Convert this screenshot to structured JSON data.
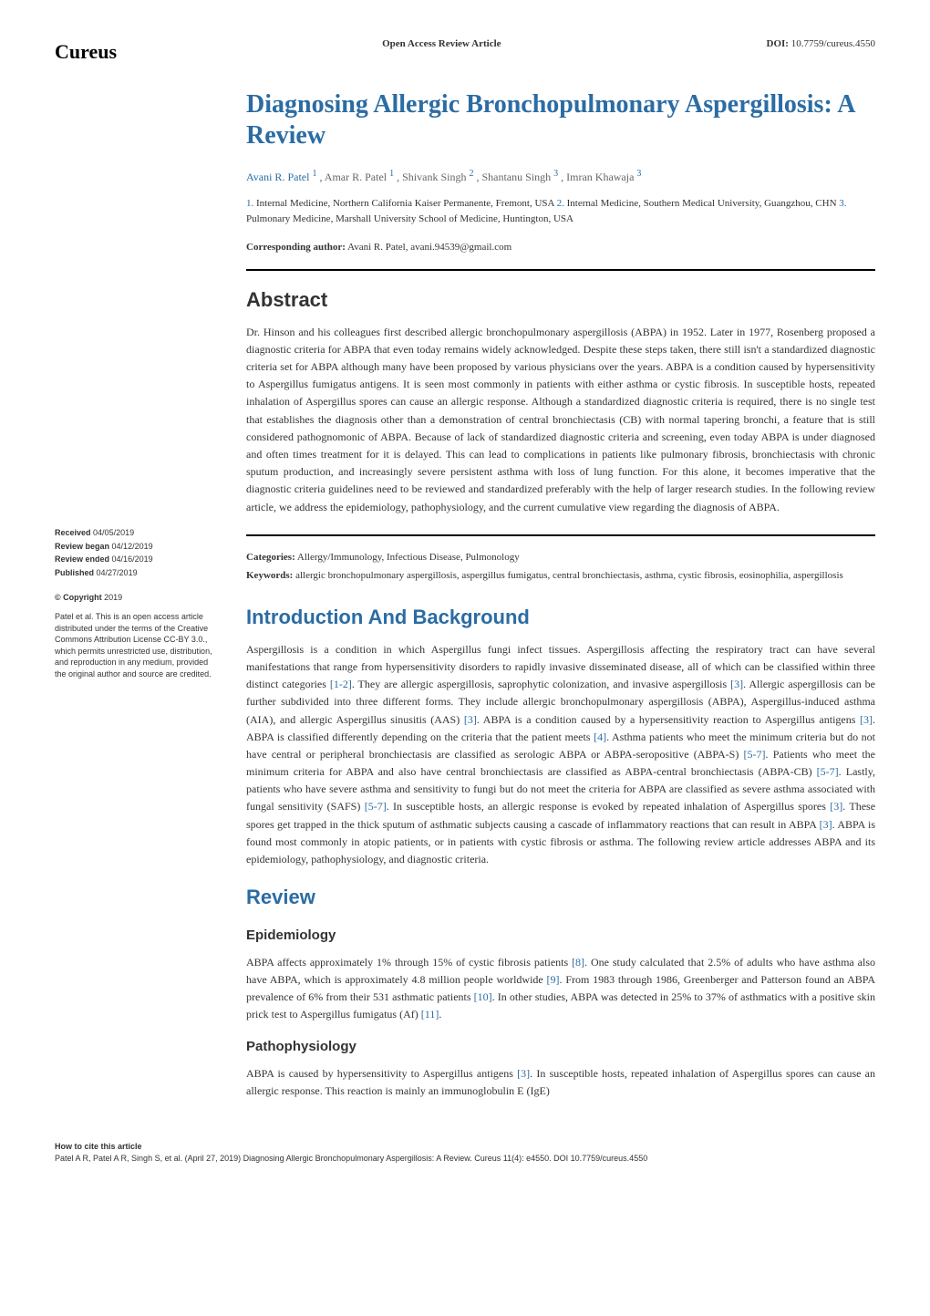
{
  "header": {
    "logo": "Cureus",
    "article_type": "Open Access Review Article",
    "doi_label": "DOI:",
    "doi": "10.7759/cureus.4550"
  },
  "title": "Diagnosing Allergic Bronchopulmonary Aspergillosis: A Review",
  "authors": {
    "list": "Avani R. Patel ¹ , Amar R. Patel ¹ , Shivank Singh ² , Shantanu Singh ³ , Imran Khawaja ³",
    "a1_name": "Avani R. Patel",
    "a1_sup": "1",
    "a2_name": "Amar R. Patel",
    "a2_sup": "1",
    "a3_name": "Shivank Singh",
    "a3_sup": "2",
    "a4_name": "Shantanu Singh",
    "a4_sup": "3",
    "a5_name": "Imran Khawaja",
    "a5_sup": "3"
  },
  "affiliations": {
    "n1": "1.",
    "a1": "Internal Medicine, Northern California Kaiser Permanente, Fremont, USA",
    "n2": "2.",
    "a2": "Internal Medicine, Southern Medical University, Guangzhou, CHN",
    "n3": "3.",
    "a3": "Pulmonary Medicine, Marshall University School of Medicine, Huntington, USA"
  },
  "corresponding": {
    "label": "Corresponding author:",
    "text": "Avani R. Patel, avani.94539@gmail.com"
  },
  "sidebar": {
    "received_label": "Received",
    "received": "04/05/2019",
    "review_began_label": "Review began",
    "review_began": "04/12/2019",
    "review_ended_label": "Review ended",
    "review_ended": "04/16/2019",
    "published_label": "Published",
    "published": "04/27/2019",
    "copyright_label": "© Copyright",
    "copyright_year": "2019",
    "copyright_text": "Patel et al. This is an open access article distributed under the terms of the Creative Commons Attribution License CC-BY 3.0., which permits unrestricted use, distribution, and reproduction in any medium, provided the original author and source are credited."
  },
  "sections": {
    "abstract_heading": "Abstract",
    "abstract_text": "Dr. Hinson and his colleagues first described allergic bronchopulmonary aspergillosis (ABPA) in 1952. Later in 1977, Rosenberg proposed a diagnostic criteria for ABPA that even today remains widely acknowledged. Despite these steps taken, there still isn't a standardized diagnostic criteria set for ABPA although many have been proposed by various physicians over the years. ABPA is a condition caused by hypersensitivity to Aspergillus fumigatus antigens. It is seen most commonly in patients with either asthma or cystic fibrosis. In susceptible hosts, repeated inhalation of Aspergillus spores can cause an allergic response. Although a standardized diagnostic criteria is required, there is no single test that establishes the diagnosis other than a demonstration of central bronchiectasis (CB) with normal tapering bronchi, a feature that is still considered pathognomonic of ABPA. Because of lack of standardized diagnostic criteria and screening, even today ABPA is under diagnosed and often times treatment for it is delayed. This can lead to complications in patients like pulmonary fibrosis, bronchiectasis with chronic sputum production, and increasingly severe persistent asthma with loss of lung function. For this alone, it becomes imperative that the diagnostic criteria guidelines need to be reviewed and standardized preferably with the help of larger research studies. In the following review article, we address the epidemiology, pathophysiology, and the current cumulative view regarding the diagnosis of ABPA.",
    "categories_label": "Categories:",
    "categories_text": "Allergy/Immunology, Infectious Disease, Pulmonology",
    "keywords_label": "Keywords:",
    "keywords_text": "allergic bronchopulmonary aspergillosis, aspergillus fumigatus, central bronchiectasis, asthma, cystic fibrosis, eosinophilia, aspergillosis",
    "intro_heading": "Introduction And Background",
    "intro_p1": "Aspergillosis is a condition in which Aspergillus fungi infect tissues. Aspergillosis affecting the respiratory tract can have several manifestations that range from hypersensitivity disorders to rapidly invasive disseminated disease, all of which can be classified within three distinct categories ",
    "intro_cite1": "[1-2]",
    "intro_p1b": ". They are allergic aspergillosis, saprophytic colonization, and invasive aspergillosis ",
    "intro_cite2": "[3]",
    "intro_p1c": ". Allergic aspergillosis can be further subdivided into three different forms. They include allergic bronchopulmonary aspergillosis (ABPA), Aspergillus-induced asthma (AIA), and allergic Aspergillus sinusitis (AAS) ",
    "intro_cite3": "[3]",
    "intro_p1d": ". ABPA is a condition caused by a hypersensitivity reaction to Aspergillus antigens ",
    "intro_cite4": "[3]",
    "intro_p1e": ". ABPA is classified differently depending on the criteria that the patient meets ",
    "intro_cite5": "[4]",
    "intro_p1f": ". Asthma patients who meet the minimum criteria but do not have central or peripheral bronchiectasis are classified as serologic ABPA or ABPA-seropositive (ABPA-S) ",
    "intro_cite6": "[5-7]",
    "intro_p1g": ". Patients who meet the minimum criteria for ABPA and also have central bronchiectasis are classified as ABPA-central bronchiectasis (ABPA-CB) ",
    "intro_cite7": "[5-7]",
    "intro_p1h": ". Lastly, patients who have severe asthma and sensitivity to fungi but do not meet the criteria for ABPA are classified as severe asthma associated with fungal sensitivity (SAFS) ",
    "intro_cite8": "[5-7]",
    "intro_p1i": ". In susceptible hosts, an allergic response is evoked by repeated inhalation of Aspergillus spores ",
    "intro_cite9": "[3]",
    "intro_p1j": ". These spores get trapped in the thick sputum of asthmatic subjects causing a cascade of inflammatory reactions that can result in ABPA ",
    "intro_cite10": "[3]",
    "intro_p1k": ". ABPA is found most commonly in atopic patients, or in patients with cystic fibrosis or asthma. The following review article addresses ABPA and its epidemiology, pathophysiology, and diagnostic criteria.",
    "review_heading": "Review",
    "epi_heading": "Epidemiology",
    "epi_p1": "ABPA affects approximately 1% through 15% of cystic fibrosis patients ",
    "epi_cite1": "[8]",
    "epi_p1b": ". One study calculated that 2.5% of adults who have asthma also have ABPA, which is approximately 4.8 million people worldwide ",
    "epi_cite2": "[9]",
    "epi_p1c": ". From 1983 through 1986, Greenberger and Patterson found an ABPA prevalence of 6% from their 531 asthmatic patients ",
    "epi_cite3": "[10]",
    "epi_p1d": ". In other studies, ABPA was detected in 25% to 37% of asthmatics with a positive skin prick test to Aspergillus fumigatus (Af) ",
    "epi_cite4": "[11]",
    "epi_p1e": ".",
    "patho_heading": "Pathophysiology",
    "patho_p1": "ABPA is caused by hypersensitivity to Aspergillus antigens ",
    "patho_cite1": "[3]",
    "patho_p1b": ". In susceptible hosts, repeated inhalation of Aspergillus spores can cause an allergic response. This reaction is mainly an immunoglobulin E (IgE)"
  },
  "footer": {
    "title": "How to cite this article",
    "text": "Patel A R, Patel A R, Singh S, et al. (April 27, 2019) Diagnosing Allergic Bronchopulmonary Aspergillosis: A Review. Cureus 11(4): e4550. DOI 10.7759/cureus.4550"
  },
  "colors": {
    "primary_blue": "#2b6ca3",
    "text_dark": "#333333",
    "text_gray": "#666666",
    "background": "#ffffff",
    "black": "#000000"
  }
}
